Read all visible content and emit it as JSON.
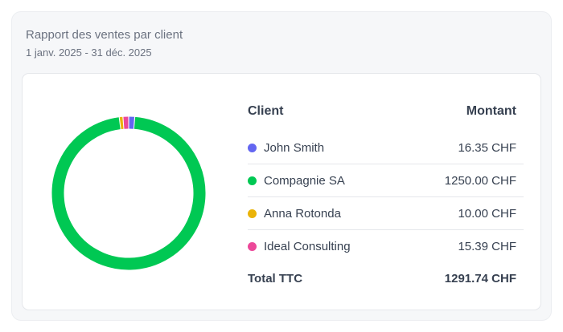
{
  "header": {
    "title": "Rapport des ventes par client",
    "date_range": "1 janv. 2025 - 31 déc. 2025"
  },
  "table": {
    "col_client": "Client",
    "col_amount": "Montant",
    "rows": [
      {
        "client": "John Smith",
        "amount": "16.35 CHF",
        "color": "#6366f1"
      },
      {
        "client": "Compagnie SA",
        "amount": "1250.00 CHF",
        "color": "#00c853"
      },
      {
        "client": "Anna Rotonda",
        "amount": "10.00 CHF",
        "color": "#eab308"
      },
      {
        "client": "Ideal Consulting",
        "amount": "15.39 CHF",
        "color": "#ec4899"
      }
    ],
    "total_label": "Total TTC",
    "total_amount": "1291.74 CHF"
  },
  "chart_data": {
    "type": "pie",
    "categories": [
      "John Smith",
      "Compagnie SA",
      "Anna Rotonda",
      "Ideal Consulting"
    ],
    "values": [
      16.35,
      1250.0,
      10.0,
      15.39
    ],
    "colors": [
      "#6366f1",
      "#00c853",
      "#eab308",
      "#ec4899"
    ]
  }
}
